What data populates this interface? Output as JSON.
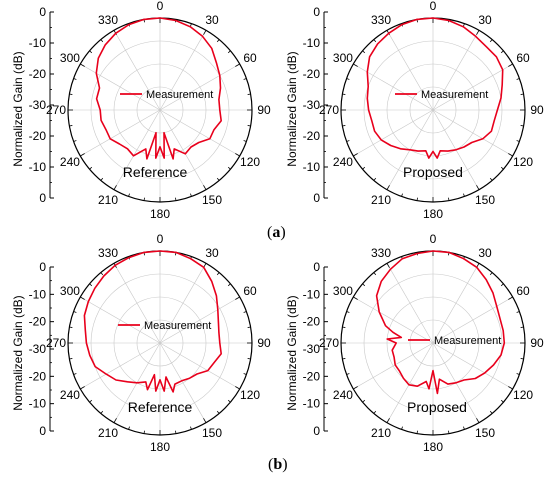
{
  "caption_a": {
    "open": "(",
    "letter": "a",
    "close": ")"
  },
  "caption_b": {
    "open": "(",
    "letter": "b",
    "close": ")"
  },
  "chart_data": [
    {
      "type": "polar-line",
      "ylabel": "Normalized Gain (dB)",
      "annotation": "Reference",
      "legend": "Measurement",
      "legend_position": "center-left",
      "angle_ticks": [
        "0",
        "30",
        "60",
        "90",
        "120",
        "150",
        "180",
        "210",
        "240",
        "270",
        "300",
        "330"
      ],
      "radial_ticks": [
        "0",
        "-10",
        "-20",
        "-30",
        "-20",
        "-10",
        "0"
      ],
      "rlim": [
        -40,
        0
      ],
      "grid": true,
      "color": "#e8001c",
      "series": [
        {
          "theta": [
            0,
            10,
            20,
            30,
            40,
            50,
            60,
            70,
            80,
            90,
            100,
            110,
            120,
            130,
            140,
            150,
            160,
            165,
            170,
            175,
            180,
            185,
            190,
            195,
            200,
            210,
            220,
            230,
            240,
            250,
            260,
            270,
            280,
            290,
            300,
            310,
            320,
            330,
            340,
            350
          ],
          "values": [
            0,
            -0.5,
            -1.5,
            -3,
            -5,
            -8,
            -10,
            -12,
            -14,
            -14,
            -13,
            -15,
            -15,
            -18,
            -19,
            -18,
            -22,
            -18,
            -30,
            -19,
            -24,
            -19,
            -30,
            -18,
            -22,
            -17,
            -18,
            -17,
            -15,
            -15,
            -14,
            -14,
            -12,
            -12,
            -8,
            -5,
            -3,
            -1.5,
            -0.5,
            0
          ]
        }
      ]
    },
    {
      "type": "polar-line",
      "ylabel": "Normalized Gain (dB)",
      "annotation": "Proposed",
      "legend": "Measurement",
      "legend_position": "center-left",
      "angle_ticks": [
        "0",
        "30",
        "60",
        "90",
        "120",
        "150",
        "180",
        "210",
        "240",
        "270",
        "300",
        "330"
      ],
      "radial_ticks": [
        "0",
        "-10",
        "-20",
        "-30",
        "-20",
        "-10",
        "0"
      ],
      "rlim": [
        -40,
        0
      ],
      "grid": true,
      "color": "#e8001c",
      "series": [
        {
          "theta": [
            0,
            10,
            20,
            30,
            40,
            50,
            60,
            70,
            80,
            90,
            100,
            110,
            120,
            130,
            140,
            150,
            160,
            170,
            175,
            180,
            185,
            190,
            200,
            210,
            220,
            230,
            240,
            250,
            260,
            270,
            280,
            290,
            300,
            310,
            320,
            330,
            340,
            350
          ],
          "values": [
            0,
            -0.5,
            -1.5,
            -3,
            -4,
            -4,
            -5,
            -8,
            -10,
            -12,
            -13,
            -13,
            -15,
            -18,
            -19,
            -20,
            -21,
            -22,
            -19,
            -22,
            -19,
            -22,
            -21,
            -20,
            -18,
            -16,
            -14,
            -13,
            -13,
            -12,
            -11,
            -10,
            -7,
            -4,
            -2.5,
            -1.5,
            -0.5,
            0
          ]
        }
      ]
    },
    {
      "type": "polar-line",
      "ylabel": "Normalized Gain (dB)",
      "annotation": "Reference",
      "legend": "Measurement",
      "legend_position": "center-left",
      "angle_ticks": [
        "0",
        "30",
        "60",
        "90",
        "120",
        "150",
        "180",
        "210",
        "240",
        "270",
        "300",
        "330"
      ],
      "radial_ticks": [
        "0",
        "-10",
        "-20",
        "-30",
        "-20",
        "-10",
        "0"
      ],
      "rlim": [
        -40,
        0
      ],
      "grid": true,
      "color": "#e8001c",
      "series": [
        {
          "theta": [
            0,
            10,
            20,
            30,
            40,
            50,
            60,
            70,
            80,
            90,
            100,
            110,
            120,
            130,
            140,
            150,
            160,
            165,
            170,
            175,
            180,
            185,
            190,
            195,
            200,
            210,
            220,
            230,
            240,
            250,
            260,
            270,
            280,
            290,
            300,
            310,
            320,
            330,
            340,
            350
          ],
          "values": [
            0,
            0,
            -1,
            -2,
            -5,
            -8,
            -11,
            -13,
            -14,
            -14,
            -13,
            -15,
            -16,
            -19,
            -20,
            -21,
            -21,
            -18,
            -25,
            -19,
            -24,
            -19,
            -26,
            -19,
            -22,
            -20,
            -18,
            -15,
            -13,
            -10,
            -9,
            -8,
            -7,
            -5,
            -4,
            -3,
            -2,
            -1,
            -0.5,
            0
          ]
        }
      ]
    },
    {
      "type": "polar-line",
      "ylabel": "Normalized Gain (dB)",
      "annotation": "Proposed",
      "legend": "Measurement",
      "legend_position": "center-right",
      "angle_ticks": [
        "0",
        "30",
        "60",
        "90",
        "120",
        "150",
        "180",
        "210",
        "240",
        "270",
        "300",
        "330"
      ],
      "radial_ticks": [
        "0",
        "-10",
        "-20",
        "-30",
        "-20",
        "-10",
        "0"
      ],
      "rlim": [
        -40,
        0
      ],
      "grid": true,
      "color": "#e8001c",
      "series": [
        {
          "theta": [
            0,
            10,
            20,
            30,
            40,
            50,
            60,
            70,
            80,
            90,
            100,
            110,
            120,
            130,
            140,
            150,
            160,
            170,
            175,
            180,
            185,
            190,
            200,
            210,
            220,
            230,
            240,
            250,
            260,
            270,
            275,
            280,
            285,
            290,
            300,
            310,
            320,
            330,
            340,
            350
          ],
          "values": [
            0,
            0,
            -1,
            -2,
            -4,
            -6,
            -8,
            -9,
            -9,
            -9,
            -10,
            -12,
            -14,
            -16,
            -19,
            -20,
            -21,
            -24,
            -18,
            -28,
            -20,
            -23,
            -20,
            -19,
            -20,
            -21,
            -21,
            -22,
            -22,
            -24,
            -20,
            -26,
            -22,
            -18,
            -13,
            -8,
            -5,
            -3,
            -1,
            -0.5
          ]
        }
      ]
    }
  ]
}
